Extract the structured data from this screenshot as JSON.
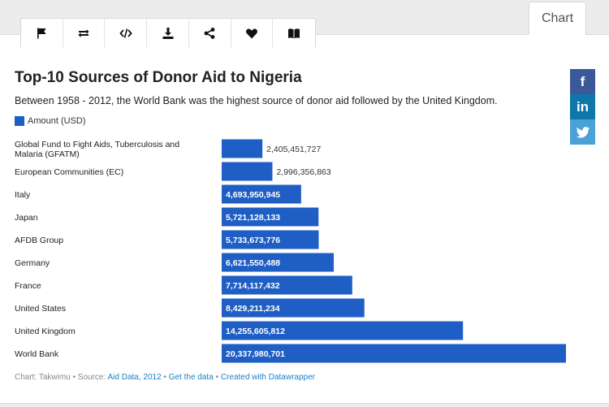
{
  "toolbar": {
    "icons": [
      "flag-icon",
      "exchange-icon",
      "code-icon",
      "download-icon",
      "share-icon",
      "heart-icon",
      "book-icon"
    ]
  },
  "tab": {
    "label": "Chart"
  },
  "colors": {
    "bar": "#1f5ec4",
    "accent_link": "#1d81c5"
  },
  "chart_data": {
    "type": "bar",
    "orientation": "horizontal",
    "title": "Top-10 Sources of Donor Aid to Nigeria",
    "subtitle": "Between 1958 - 2012, the World Bank was the highest source of donor aid followed by the United Kingdom.",
    "legend": [
      "Amount (USD)"
    ],
    "categories": [
      "Global Fund to Fight Aids, Tuberculosis and Malaria (GFATM)",
      "European Communities (EC)",
      "Italy",
      "Japan",
      "AFDB Group",
      "Germany",
      "France",
      "United States",
      "United Kingdom",
      "World Bank"
    ],
    "series": [
      {
        "name": "Amount (USD)",
        "values": [
          2405451727,
          2996356863,
          4693950945,
          5721128133,
          5733673776,
          6621550488,
          7714117432,
          8429211234,
          14255605812,
          20337980701
        ]
      }
    ],
    "value_labels": [
      "2,405,451,727",
      "2,996,356,863",
      "4,693,950,945",
      "5,721,128,133",
      "5,733,673,776",
      "6,621,550,488",
      "7,714,117,432",
      "8,429,211,234",
      "14,255,605,812",
      "20,337,980,701"
    ],
    "xlim": [
      0,
      20337980701
    ],
    "grid": false
  },
  "footer": {
    "prefix": "Chart: Takwimu • Source: ",
    "source_link": "Aid Data, 2012",
    "sep1": " • ",
    "get_data": "Get the data",
    "sep2": " • ",
    "created_with": "Created with Datawrapper"
  },
  "social": {
    "facebook": "f",
    "linkedin": "in",
    "twitter": "twitter-bird"
  }
}
